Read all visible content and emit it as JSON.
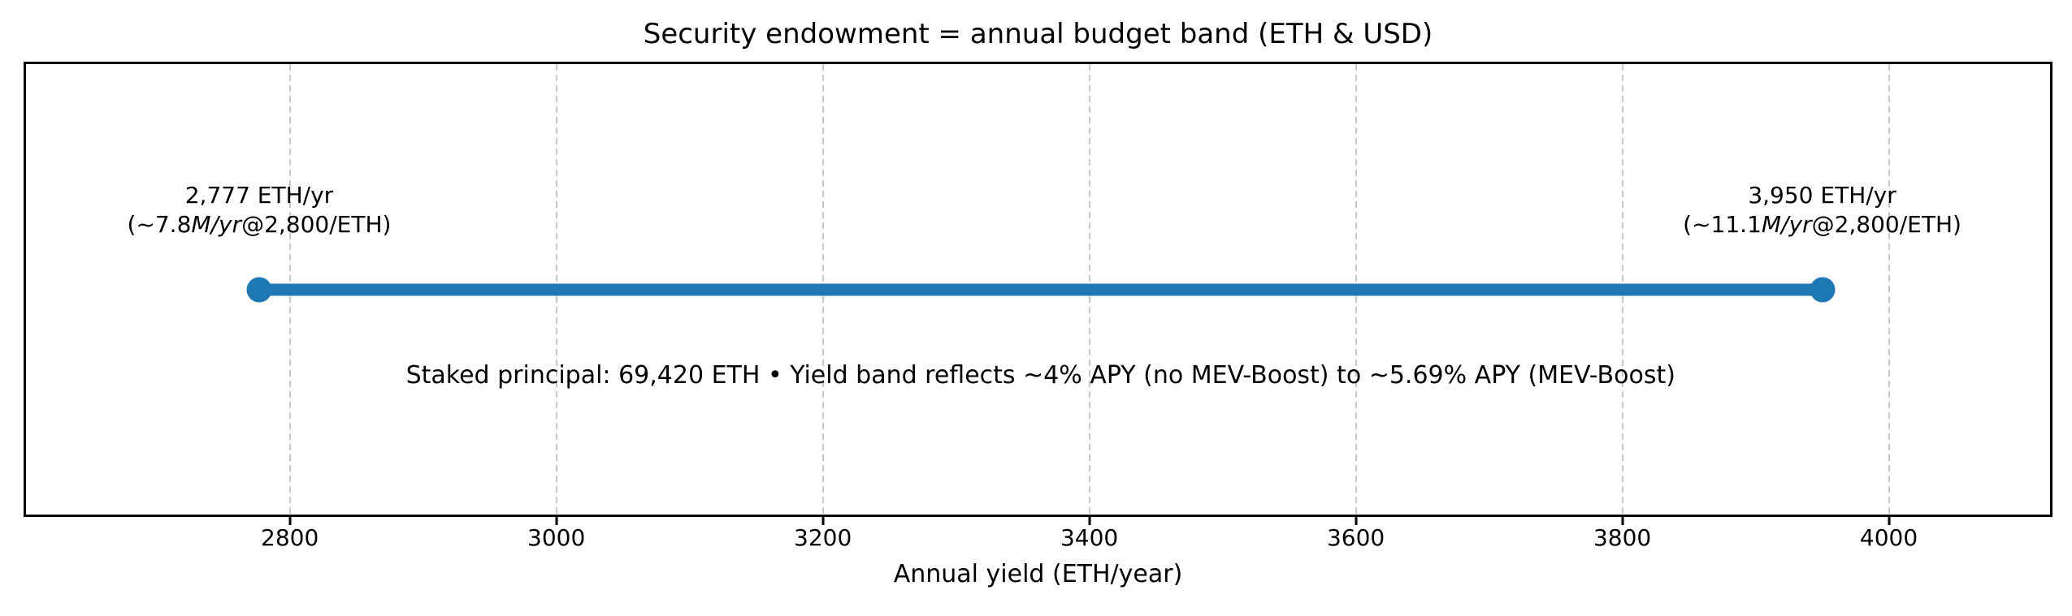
{
  "chart_data": {
    "type": "range_band",
    "title": "Security endowment = annual budget band (ETH & USD)",
    "xlabel": "Annual yield (ETH/year)",
    "xlim": [
      2602,
      4121
    ],
    "xticks": [
      2800,
      3000,
      3200,
      3400,
      3600,
      3800,
      4000
    ],
    "grid": {
      "axis": "x",
      "style": "dashed",
      "color": "#c8c8c8"
    },
    "band": {
      "start": 2777,
      "end": 3950,
      "color": "#1f77b4"
    },
    "annotations": [
      {
        "x": 2777,
        "line1": "2,777 ETH/yr",
        "line2_prefix": "(~7.8",
        "line2_italic": "M/yr",
        "line2_suffix": "@2,800/ETH)"
      },
      {
        "x": 3950,
        "line1": "3,950 ETH/yr",
        "line2_prefix": "(~11.1",
        "line2_italic": "M/yr",
        "line2_suffix": "@2,800/ETH)"
      }
    ],
    "note": "Staked principal: 69,420 ETH • Yield band reflects ~4% APY (no MEV-Boost) to ~5.69% APY (MEV-Boost)"
  }
}
